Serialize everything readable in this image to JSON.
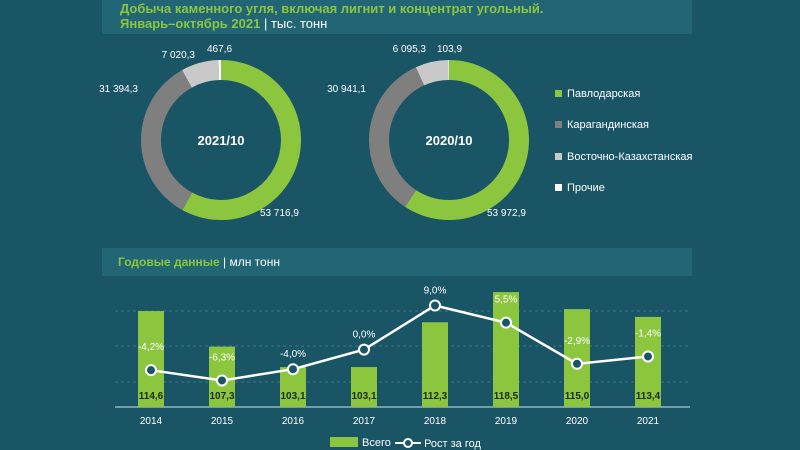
{
  "header": {
    "title": "Добыча каменного угля, включая лигнит и концентрат угольный.",
    "period": "Январь–октябрь 2021",
    "unit": "тыс. тонн"
  },
  "annual": {
    "title": "Годовые данные",
    "unit": "млн тонн"
  },
  "colors": {
    "green": "#8cc63f",
    "gray": "#7f7f7f",
    "lightgray": "#c9c9c9",
    "white": "#ffffff",
    "line": "#ffffff"
  },
  "chart_data": [
    {
      "type": "pie",
      "title": "2021/10",
      "labels": [
        "Павлодарская",
        "Карагандинская",
        "Восточно-Казахстанская",
        "Прочие"
      ],
      "values": [
        53716.9,
        31394.3,
        7020.3,
        467.6
      ],
      "value_labels": [
        "53 716,9",
        "31 394,3",
        "7 020,3",
        "467,6"
      ]
    },
    {
      "type": "pie",
      "title": "2020/10",
      "labels": [
        "Павлодарская",
        "Карагандинская",
        "Восточно-Казахстанская",
        "Прочие"
      ],
      "values": [
        53972.9,
        30941.1,
        6095.3,
        103.9
      ],
      "value_labels": [
        "53 972,9",
        "30 941,1",
        "6 095,3",
        "103,9"
      ]
    },
    {
      "type": "bar",
      "categories": [
        "2014",
        "2015",
        "2016",
        "2017",
        "2018",
        "2019",
        "2020",
        "2021"
      ],
      "series": [
        {
          "name": "Всего",
          "values": [
            114.6,
            107.3,
            103.1,
            103.1,
            112.3,
            118.5,
            115.0,
            113.4
          ],
          "labels": [
            "114,6",
            "107,3",
            "103,1",
            "103,1",
            "112,3",
            "118,5",
            "115,0",
            "113,4"
          ]
        },
        {
          "name": "Рост за год",
          "type": "line",
          "values": [
            -4.2,
            -6.3,
            -4.0,
            0.0,
            9.0,
            5.5,
            -2.9,
            -1.4
          ],
          "labels": [
            "-4,2%",
            "-6,3%",
            "-4,0%",
            "0,0%",
            "9,0%",
            "5,5%",
            "-2,9%",
            "-1,4%"
          ]
        }
      ]
    }
  ],
  "legend": [
    "Павлодарская",
    "Карагандинская",
    "Восточно-Казахстанская",
    "Прочие"
  ],
  "bar_legend": [
    "Всего",
    "Рост за год"
  ]
}
